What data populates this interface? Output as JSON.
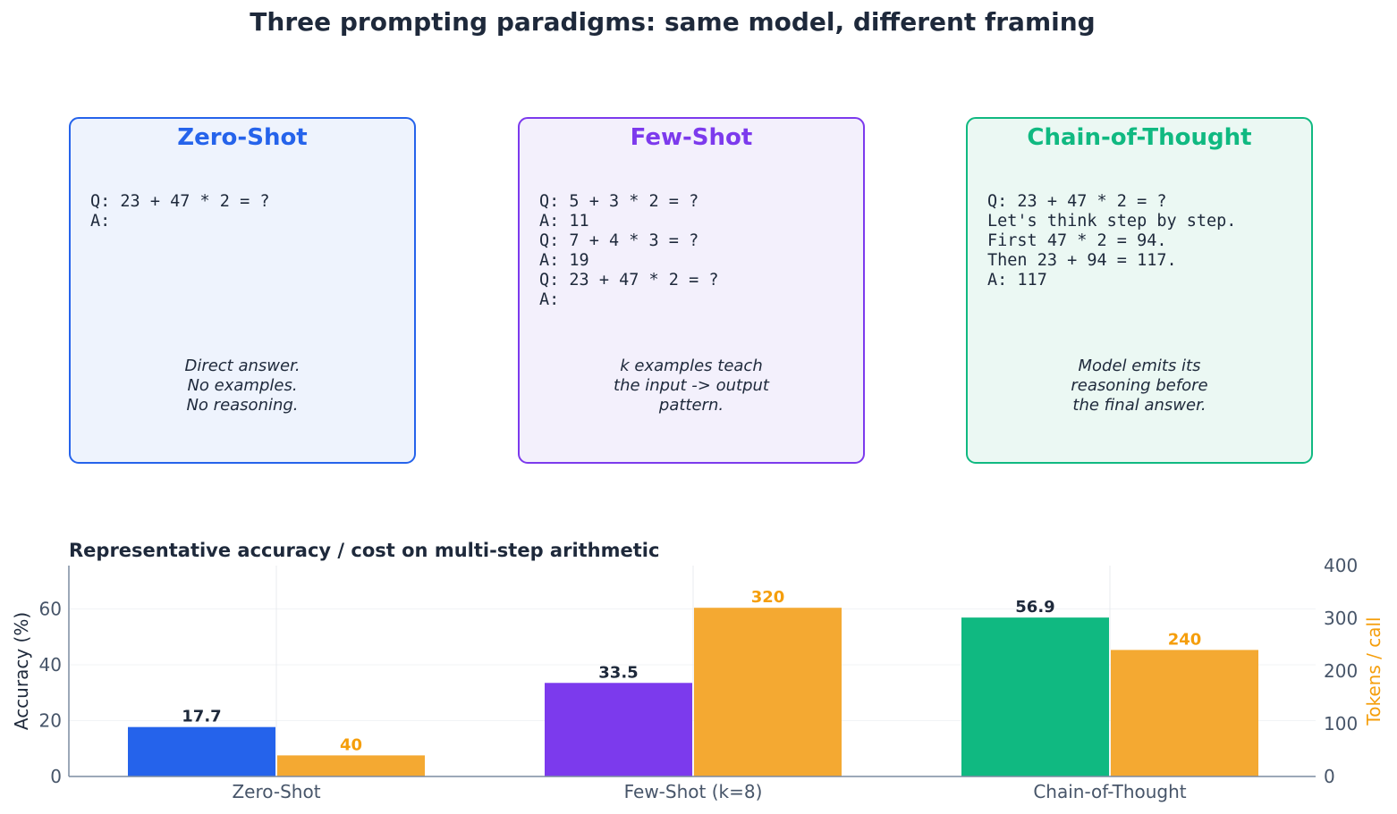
{
  "title": "Three prompting paradigms: same model, different framing",
  "cards": [
    {
      "name": "Zero-Shot",
      "color": "#2563eb",
      "bg": "#eef3fd",
      "code": "Q: 23 + 47 * 2 = ?\nA:",
      "description": "Direct answer.\nNo examples.\nNo reasoning."
    },
    {
      "name": "Few-Shot",
      "color": "#7c3aed",
      "bg": "#f3f0fc",
      "code": "Q: 5 + 3 * 2 = ?\nA: 11\nQ: 7 + 4 * 3 = ?\nA: 19\nQ: 23 + 47 * 2 = ?\nA:",
      "description": "k examples teach\nthe input -> output\npattern."
    },
    {
      "name": "Chain-of-Thought",
      "color": "#10b981",
      "bg": "#ebf8f3",
      "code": "Q: 23 + 47 * 2 = ?\nLet's think step by step.\nFirst 47 * 2 = 94.\nThen 23 + 94 = 117.\nA: 117",
      "description": "Model emits its\nreasoning before\nthe final answer."
    }
  ],
  "chart_data": {
    "type": "bar",
    "title": "Representative accuracy / cost on multi-step arithmetic",
    "categories": [
      "Zero-Shot",
      "Few-Shot (k=8)",
      "Chain-of-Thought"
    ],
    "series": [
      {
        "values": [
          17.7,
          33.5,
          56.9
        ],
        "axis": "left",
        "colors": [
          "#2563eb",
          "#7c3aed",
          "#10b981"
        ]
      },
      {
        "values": [
          40,
          320,
          240
        ],
        "axis": "right",
        "color": "#f4a932"
      }
    ],
    "ylabel": "Accuracy (%)",
    "y2label": "Tokens / call",
    "ylim": [
      0,
      75.5
    ],
    "y2lim": [
      0,
      400
    ],
    "yticks": [
      0,
      20,
      40,
      60
    ],
    "y2ticks": [
      0,
      100,
      200,
      300,
      400
    ],
    "label_color_left": "#1e293b",
    "label_color_right": "#f59e0b",
    "grid": true,
    "legend": false
  }
}
